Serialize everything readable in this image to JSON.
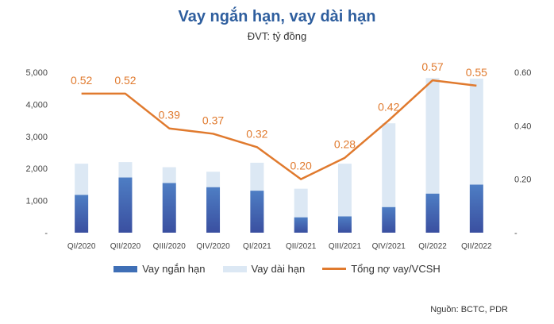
{
  "chart_data": {
    "type": "bar",
    "title": "Vay ngắn hạn, vay dài hạn",
    "subtitle": "ĐVT: tỷ đồng",
    "categories": [
      "QI/2020",
      "QII/2020",
      "QIII/2020",
      "QIV/2020",
      "QI/2021",
      "QII/2021",
      "QIII/2021",
      "QIV/2021",
      "QI/2022",
      "QII/2022"
    ],
    "series": [
      {
        "name": "Vay ngắn hạn",
        "kind": "bar",
        "axis": "left",
        "color": "#3F6FB6",
        "values": [
          1180,
          1720,
          1550,
          1420,
          1310,
          480,
          510,
          800,
          1220,
          1500
        ]
      },
      {
        "name": "Vay dài hạn",
        "kind": "bar",
        "axis": "left",
        "color": "#DCE8F4",
        "values": [
          970,
          480,
          490,
          480,
          870,
          890,
          1640,
          2610,
          3600,
          3300
        ]
      },
      {
        "name": "Tổng nợ vay/VCSH",
        "kind": "line",
        "axis": "right",
        "color": "#E07A2E",
        "values": [
          0.52,
          0.52,
          0.39,
          0.37,
          0.32,
          0.2,
          0.28,
          0.42,
          0.57,
          0.55
        ]
      }
    ],
    "data_labels": [
      "0.52",
      "0.52",
      "0.39",
      "0.37",
      "0.32",
      "0.20",
      "0.28",
      "0.42",
      "0.57",
      "0.55"
    ],
    "y_left": {
      "ylim": [
        0,
        5000
      ],
      "ticks": [
        "5,000",
        "4,000",
        "3,000",
        "2,000",
        "1,000",
        "-"
      ],
      "tick_values": [
        5000,
        4000,
        3000,
        2000,
        1000,
        0
      ]
    },
    "y_right": {
      "ylim": [
        0,
        0.6
      ],
      "ticks": [
        "0.60",
        "0.40",
        "0.20",
        "-"
      ],
      "tick_values": [
        0.6,
        0.4,
        0.2,
        0
      ]
    },
    "legend_position": "bottom",
    "source": "Nguồn: BCTC, PDR"
  }
}
